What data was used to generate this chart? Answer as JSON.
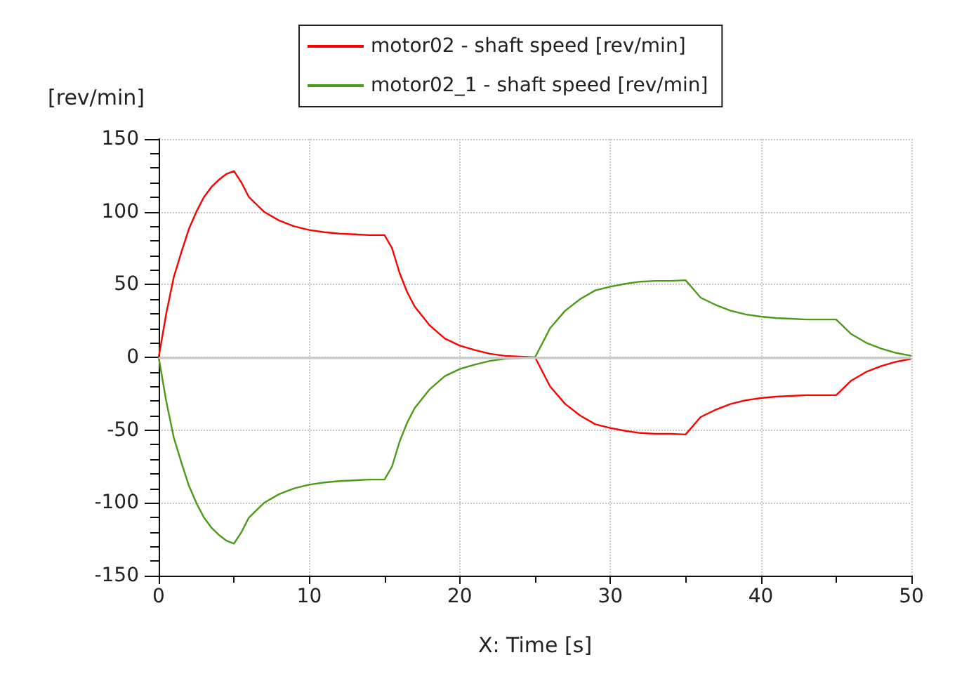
{
  "chart_data": {
    "type": "line",
    "xlabel": "X: Time [s]",
    "ylabel": "[rev/min]",
    "x": [
      0,
      0.5,
      1,
      1.5,
      2,
      2.5,
      3,
      3.5,
      4,
      4.5,
      5,
      5.5,
      6,
      7,
      8,
      9,
      10,
      11,
      12,
      13,
      14,
      15,
      15.5,
      16,
      16.5,
      17,
      18,
      19,
      20,
      21,
      22,
      23,
      24,
      25,
      25.5,
      26,
      27,
      28,
      29,
      30,
      31,
      32,
      33,
      34,
      35,
      35.5,
      36,
      37,
      38,
      39,
      40,
      41,
      42,
      43,
      44,
      45,
      45.5,
      46,
      47,
      48,
      49,
      50
    ],
    "series": [
      {
        "name": "motor02 - shaft speed [rev/min]",
        "color": "#ff0000",
        "values": [
          0,
          30,
          55,
          72,
          88,
          100,
          110,
          117,
          122,
          126,
          128,
          120,
          110,
          100,
          94,
          90,
          87.5,
          86,
          85,
          84.5,
          84,
          84,
          75,
          58,
          45,
          35,
          22,
          13,
          8,
          5,
          2.5,
          1,
          0.5,
          0,
          -10,
          -20,
          -32,
          -40,
          -46,
          -48.5,
          -50.5,
          -52,
          -52.5,
          -52.5,
          -53,
          -47,
          -41,
          -36,
          -32,
          -29.5,
          -28,
          -27,
          -26.5,
          -26,
          -26,
          -26,
          -21,
          -16,
          -10,
          -6,
          -3,
          -1
        ]
      },
      {
        "name": "motor02_1 - shaft speed [rev/min]",
        "color": "#4c9a1a",
        "values": [
          0,
          -30,
          -55,
          -72,
          -88,
          -100,
          -110,
          -117,
          -122,
          -126,
          -128,
          -120,
          -110,
          -100,
          -94,
          -90,
          -87.5,
          -86,
          -85,
          -84.5,
          -84,
          -84,
          -75,
          -58,
          -45,
          -35,
          -22,
          -13,
          -8,
          -5,
          -2.5,
          -1,
          -0.5,
          0,
          10,
          20,
          32,
          40,
          46,
          48.5,
          50.5,
          52,
          52.5,
          52.5,
          53,
          47,
          41,
          36,
          32,
          29.5,
          28,
          27,
          26.5,
          26,
          26,
          26,
          21,
          16,
          10,
          6,
          3,
          1
        ]
      }
    ],
    "xlim": [
      0,
      50
    ],
    "xticks": [
      0,
      10,
      20,
      30,
      40,
      50
    ],
    "ylim": [
      -150,
      150
    ],
    "yticks": [
      -150,
      -100,
      -50,
      0,
      50,
      100,
      150
    ],
    "ref_lines": [
      {
        "axis": "y",
        "value": 0,
        "color": "#c8c8c8"
      }
    ],
    "grid": true,
    "legend": "top",
    "line_style": "solid",
    "marker": "none"
  }
}
